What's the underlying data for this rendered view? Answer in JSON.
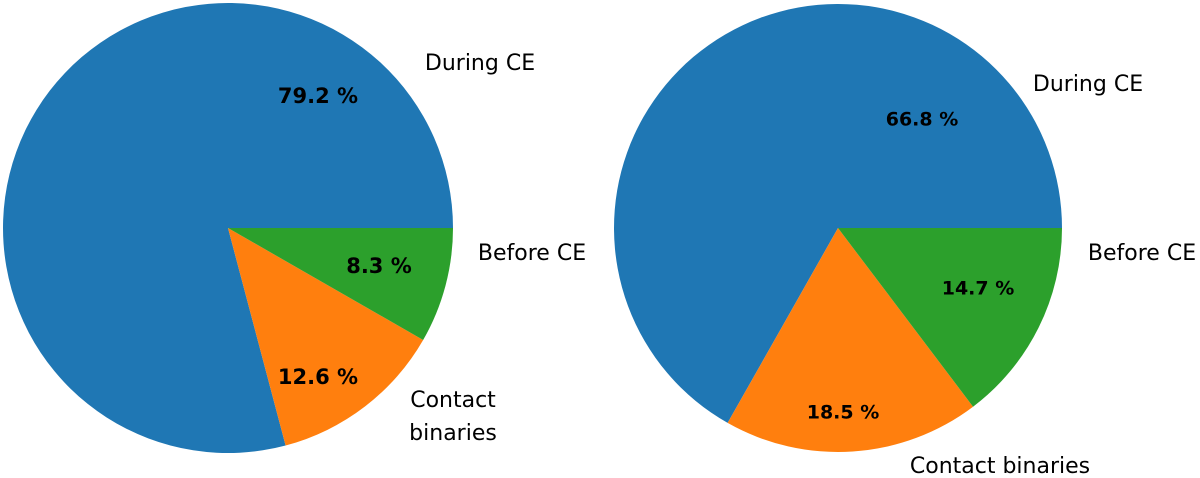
{
  "chart_data": [
    {
      "type": "pie",
      "slices": [
        {
          "label": "During CE",
          "value": 79.2,
          "pct_text": "79.2 %",
          "color": "#1f77b4"
        },
        {
          "label": "Contact\nbinaries",
          "value": 12.6,
          "pct_text": "12.6 %",
          "color": "#ff7f0e"
        },
        {
          "label": "Before CE",
          "value": 8.3,
          "pct_text": "8.3 %",
          "color": "#2ca02c"
        }
      ]
    },
    {
      "type": "pie",
      "slices": [
        {
          "label": "During CE",
          "value": 66.8,
          "pct_text": "66.8 %",
          "color": "#1f77b4"
        },
        {
          "label": "Contact binaries",
          "value": 18.5,
          "pct_text": "18.5 %",
          "color": "#ff7f0e"
        },
        {
          "label": "Before CE",
          "value": 14.7,
          "pct_text": "14.7 %",
          "color": "#2ca02c"
        }
      ]
    }
  ]
}
